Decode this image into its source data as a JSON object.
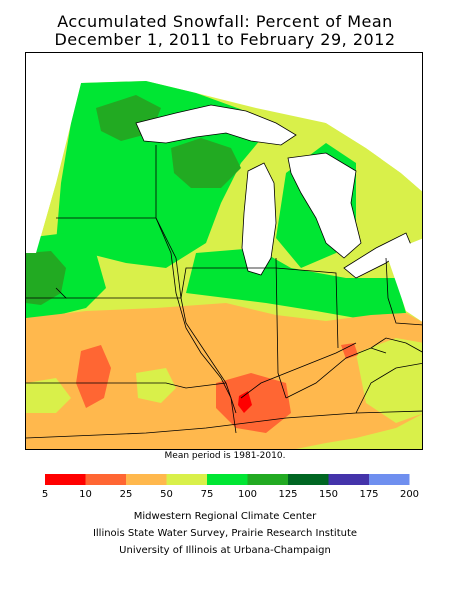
{
  "title": {
    "line1": "Accumulated Snowfall: Percent of Mean",
    "line2": "December 1, 2011 to February 29, 2012"
  },
  "mean_period": "Mean period is 1981-2010.",
  "legend": {
    "bins": [
      {
        "label": "5",
        "color": "#ff0000"
      },
      {
        "label": "10",
        "color": "#ff6633"
      },
      {
        "label": "25",
        "color": "#ffb84d"
      },
      {
        "label": "50",
        "color": "#d9f04a"
      },
      {
        "label": "75",
        "color": "#00e633"
      },
      {
        "label": "100",
        "color": "#22aa22"
      },
      {
        "label": "125",
        "color": "#006622"
      },
      {
        "label": "150",
        "color": "#4433aa"
      },
      {
        "label": "175",
        "color": "#6f8fef"
      },
      {
        "label": "200",
        "color": null
      }
    ]
  },
  "credits": {
    "line1": "Midwestern Regional Climate Center",
    "line2": "Illinois State Water Survey, Prairie Research Institute",
    "line3": "University of Illinois at Urbana-Champaign"
  }
}
